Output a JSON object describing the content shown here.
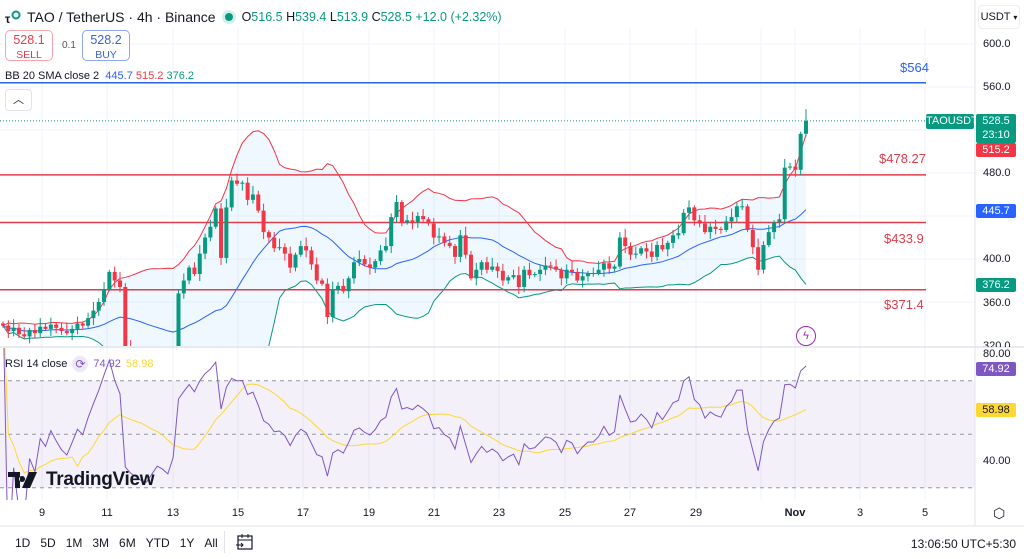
{
  "header": {
    "symbol_title": "TAO / TetherUS · 4h · Binance",
    "o_label": "O",
    "o": "516.5",
    "h_label": "H",
    "h": "539.4",
    "l_label": "L",
    "l": "513.9",
    "c_label": "C",
    "c": "528.5",
    "change": "+12.0 (+2.32%)"
  },
  "trade": {
    "sell_price": "528.1",
    "sell_label": "SELL",
    "spread": "0.1",
    "buy_price": "528.2",
    "buy_label": "BUY"
  },
  "bb": {
    "label": "BB 20 SMA close 2",
    "basis": "445.7",
    "upper": "515.2",
    "lower": "376.2"
  },
  "rsi": {
    "label": "RSI 14 close",
    "value": "74.92",
    "ma": "58.98"
  },
  "currency": "USDT",
  "price_ticks": [
    "600.0",
    "560.0",
    "480.0",
    "400.0",
    "360.0",
    "320.0"
  ],
  "rsi_ticks": [
    "80.00",
    "40.00"
  ],
  "levels": [
    {
      "label": "$564",
      "value": 564,
      "color": "#2962ff"
    },
    {
      "label": "$478.27",
      "value": 478.27,
      "color": "#e03c4a"
    },
    {
      "label": "$433.9",
      "value": 433.9,
      "color": "#e03c4a"
    },
    {
      "label": "$371.4",
      "value": 371.4,
      "color": "#e03c4a"
    }
  ],
  "symbol_badge": "TAOUSDT",
  "last_price": "528.5",
  "countdown": "23:10",
  "time_ticks": [
    "9",
    "11",
    "13",
    "15",
    "17",
    "19",
    "21",
    "23",
    "25",
    "27",
    "29",
    "Nov",
    "3",
    "5"
  ],
  "range_buttons": [
    "1D",
    "5D",
    "1M",
    "3M",
    "6M",
    "YTD",
    "1Y",
    "All"
  ],
  "clock": "13:06:50 UTC+5:30",
  "logo": "TradingView",
  "colors": {
    "up": "#089981",
    "down": "#f23645",
    "bb_basis": "#2962ff",
    "bb_upper": "#f23645",
    "bb_lower": "#089981",
    "rsi": "#7e57c2",
    "rsi_ma": "#fdd835"
  },
  "icons": [
    "tao-logo-icon",
    "market-open-dot-icon",
    "chevron-up-icon",
    "chevron-down-icon",
    "rsi-sync-icon",
    "lightning-icon",
    "settings-icon",
    "calendar-goto-icon"
  ],
  "chart_data": {
    "type": "candlestick",
    "interval": "4h",
    "ylim": [
      320,
      600
    ],
    "rsi_ylim": [
      25,
      80
    ],
    "last_candle": {
      "open": 516.5,
      "high": 539.4,
      "low": 513.9,
      "close": 528.5
    },
    "closes": [
      338,
      333,
      336,
      330,
      328,
      334,
      331,
      337,
      335,
      339,
      336,
      333,
      331,
      335,
      340,
      338,
      345,
      352,
      360,
      372,
      388,
      380,
      374,
      318,
      310,
      305,
      300,
      298,
      303,
      308,
      305,
      300,
      310,
      368,
      380,
      392,
      386,
      405,
      420,
      430,
      447,
      401,
      448,
      473,
      470,
      471,
      455,
      460,
      445,
      425,
      420,
      410,
      411,
      405,
      392,
      404,
      412,
      408,
      395,
      380,
      377,
      346,
      371,
      375,
      370,
      382,
      397,
      400,
      395,
      392,
      398,
      408,
      412,
      439,
      453,
      434,
      436,
      434,
      440,
      437,
      433,
      420,
      421,
      415,
      412,
      402,
      422,
      404,
      382,
      390,
      397,
      390,
      393,
      389,
      380,
      383,
      385,
      374,
      390,
      385,
      386,
      390,
      394,
      393,
      390,
      382,
      390,
      388,
      380,
      384,
      387,
      387,
      390,
      396,
      391,
      393,
      420,
      412,
      404,
      405,
      410,
      407,
      402,
      413,
      409,
      415,
      422,
      424,
      443,
      448,
      436,
      433,
      425,
      430,
      428,
      427,
      435,
      439,
      449,
      449,
      427,
      411,
      390,
      413,
      425,
      434,
      437,
      485,
      486,
      483,
      516.5,
      528.5
    ]
  }
}
